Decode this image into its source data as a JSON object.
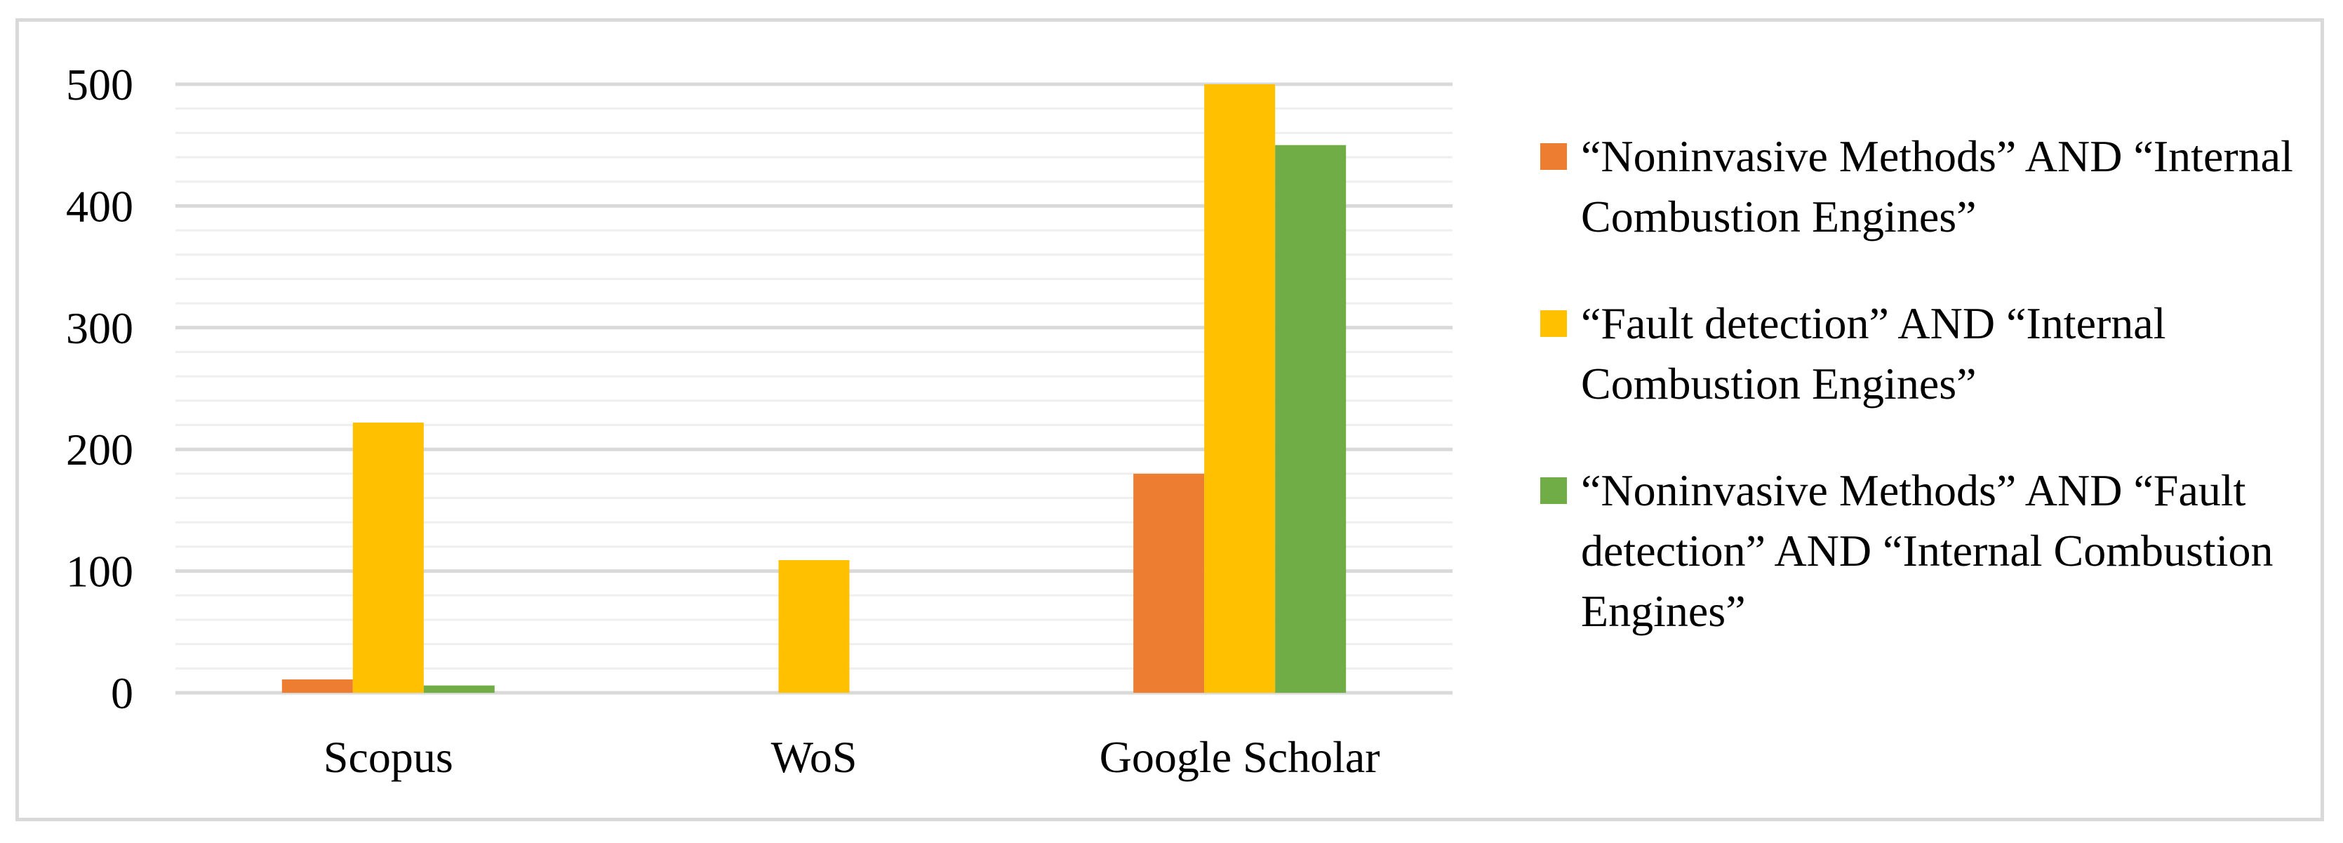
{
  "chart_data": {
    "type": "bar",
    "title": "",
    "xlabel": "",
    "ylabel": "",
    "categories": [
      "Scopus",
      "WoS",
      "Google Scholar"
    ],
    "ylim": [
      0,
      500
    ],
    "yticks": [
      0,
      100,
      200,
      300,
      400,
      500
    ],
    "grid": true,
    "legend_position": "right",
    "series": [
      {
        "name": "“Noninvasive Methods” AND “Internal Combustion Engines”",
        "color": "#ed7d31",
        "values": [
          11,
          0,
          180
        ]
      },
      {
        "name": "“Fault detection” AND “Internal Combustion Engines”",
        "color": "#ffc000",
        "values": [
          222,
          109,
          500
        ]
      },
      {
        "name": "“Noninvasive Methods” AND “Fault detection” AND “Internal Combustion Engines”",
        "color": "#70ad47",
        "values": [
          6,
          0,
          450
        ]
      }
    ]
  }
}
